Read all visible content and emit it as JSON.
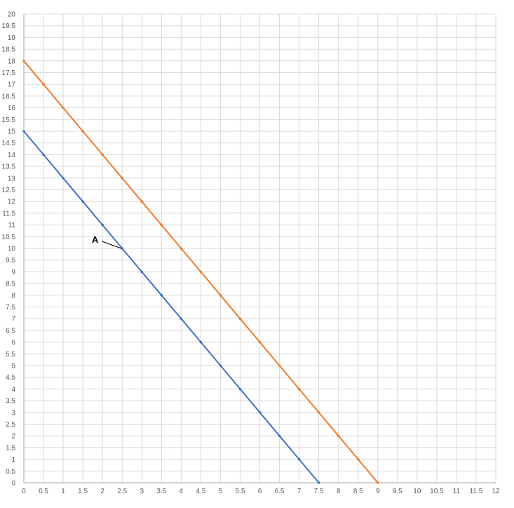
{
  "chart_data": {
    "type": "line",
    "title": "",
    "xlabel": "",
    "ylabel": "",
    "xlim": [
      0,
      12
    ],
    "ylim": [
      0,
      20
    ],
    "x_ticks": [
      "0",
      "0.5",
      "1",
      "1.5",
      "2",
      "2.5",
      "3",
      "3.5",
      "4",
      "4.5",
      "5",
      "5.5",
      "6",
      "6.5",
      "7",
      "7.5",
      "8",
      "8.5",
      "9",
      "9.5",
      "10",
      "10.5",
      "11",
      "11.5",
      "12"
    ],
    "y_ticks": [
      "0",
      "0.5",
      "1",
      "1.5",
      "2",
      "2.5",
      "3",
      "3.5",
      "4",
      "4.5",
      "5",
      "5.5",
      "6",
      "6.5",
      "7",
      "7.5",
      "8",
      "8.5",
      "9",
      "9.5",
      "10",
      "10.5",
      "11",
      "11.5",
      "12",
      "12.5",
      "13",
      "13.5",
      "14",
      "14.5",
      "15",
      "15.5",
      "16",
      "16.5",
      "17",
      "17.5",
      "18",
      "18.5",
      "19",
      "19.5",
      "20"
    ],
    "grid": true,
    "legend": "none",
    "series": [
      {
        "color": "#4472C4",
        "x": [
          0,
          0.5,
          1,
          1.5,
          2,
          2.5,
          3,
          3.5,
          4,
          4.5,
          5,
          5.5,
          6,
          6.5,
          7,
          7.5
        ],
        "y": [
          15,
          14,
          13,
          12,
          11,
          10,
          9,
          8,
          7,
          6,
          5,
          4,
          3,
          2,
          1,
          0
        ]
      },
      {
        "color": "#ED7D31",
        "x": [
          0,
          0.5,
          1,
          1.5,
          2,
          2.5,
          3,
          3.5,
          4,
          4.5,
          5,
          5.5,
          6,
          6.5,
          7,
          7.5,
          8,
          8.5,
          9
        ],
        "y": [
          18,
          17,
          16,
          15,
          14,
          13,
          12,
          11,
          10,
          9,
          8,
          7,
          6,
          5,
          4,
          3,
          2,
          1,
          0
        ]
      }
    ],
    "annotations": [
      {
        "text": "A",
        "x": 2.5,
        "y": 10
      }
    ]
  }
}
